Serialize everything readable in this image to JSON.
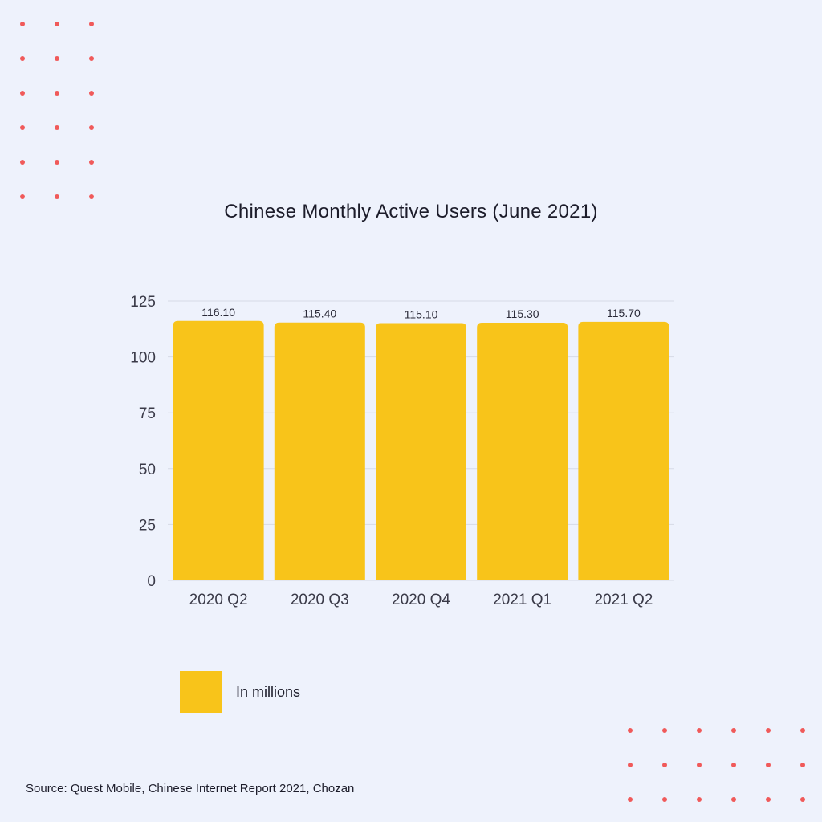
{
  "colors": {
    "background": "#eef2fc",
    "bar": "#f8c41a",
    "dot": "#f05a5a",
    "gridline": "#d6dae6",
    "text": "#1c1c2a"
  },
  "chart_data": {
    "type": "bar",
    "title": "Chinese Monthly Active Users (June 2021)",
    "categories": [
      "2020 Q2",
      "2020 Q3",
      "2020 Q4",
      "2021 Q1",
      "2021 Q2"
    ],
    "series": [
      {
        "name": "In millions",
        "values": [
          116.1,
          115.4,
          115.1,
          115.3,
          115.7
        ]
      }
    ],
    "data_labels": [
      "116.10",
      "115.40",
      "115.10",
      "115.30",
      "115.70"
    ],
    "ylim": [
      0,
      125
    ],
    "yticks": [
      "0",
      "25",
      "50",
      "75",
      "100",
      "125"
    ],
    "grid": true,
    "legend": "bottom-left",
    "xlabel": "",
    "ylabel": ""
  },
  "legend": {
    "label": "In millions"
  },
  "source": "Source: Quest Mobile, Chinese Internet Report 2021, Chozan"
}
